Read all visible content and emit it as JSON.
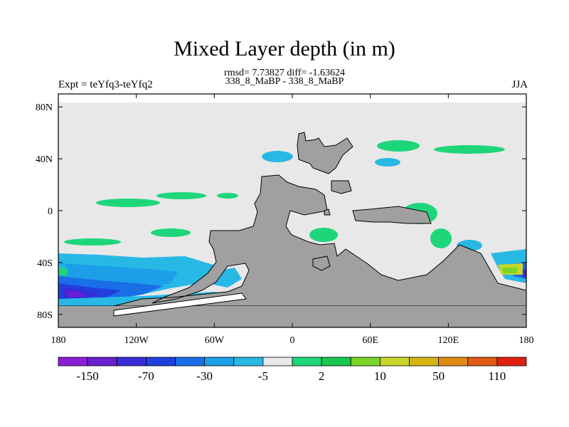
{
  "title": "Mixed Layer depth (in m)",
  "subtitle_stats": "rmsd= 7.73827 diff= -1.63624",
  "subtitle_periods": "338_8_MaBP - 338_8_MaBP",
  "experiment_label": "Expt = teYfq3-teYfq2",
  "season_label": "JJA",
  "map": {
    "projection": "cylindrical equidistant",
    "lon_range": [
      -180,
      180
    ],
    "lat_range": [
      -90,
      90
    ],
    "lat_ticks": [
      "80N",
      "40N",
      "0",
      "40S",
      "80S"
    ],
    "lon_ticks": [
      "180",
      "120W",
      "60W",
      "0",
      "60E",
      "120E",
      "180"
    ],
    "land_color": "#a0a0a0",
    "ocean_near_zero_color": "#e8e8e8"
  },
  "colorbar": {
    "labels": [
      "-150",
      "-70",
      "-30",
      "-5",
      "2",
      "10",
      "50",
      "110"
    ],
    "colors": [
      "#8a1fd6",
      "#6b1fd0",
      "#3a2bd8",
      "#2040dd",
      "#1a6ee6",
      "#1c9ee8",
      "#28b8e6",
      "#e8e8e8",
      "#1ed67a",
      "#18c850",
      "#7ad628",
      "#c8d628",
      "#d6b414",
      "#e08a14",
      "#e05a14",
      "#e02010"
    ]
  }
}
